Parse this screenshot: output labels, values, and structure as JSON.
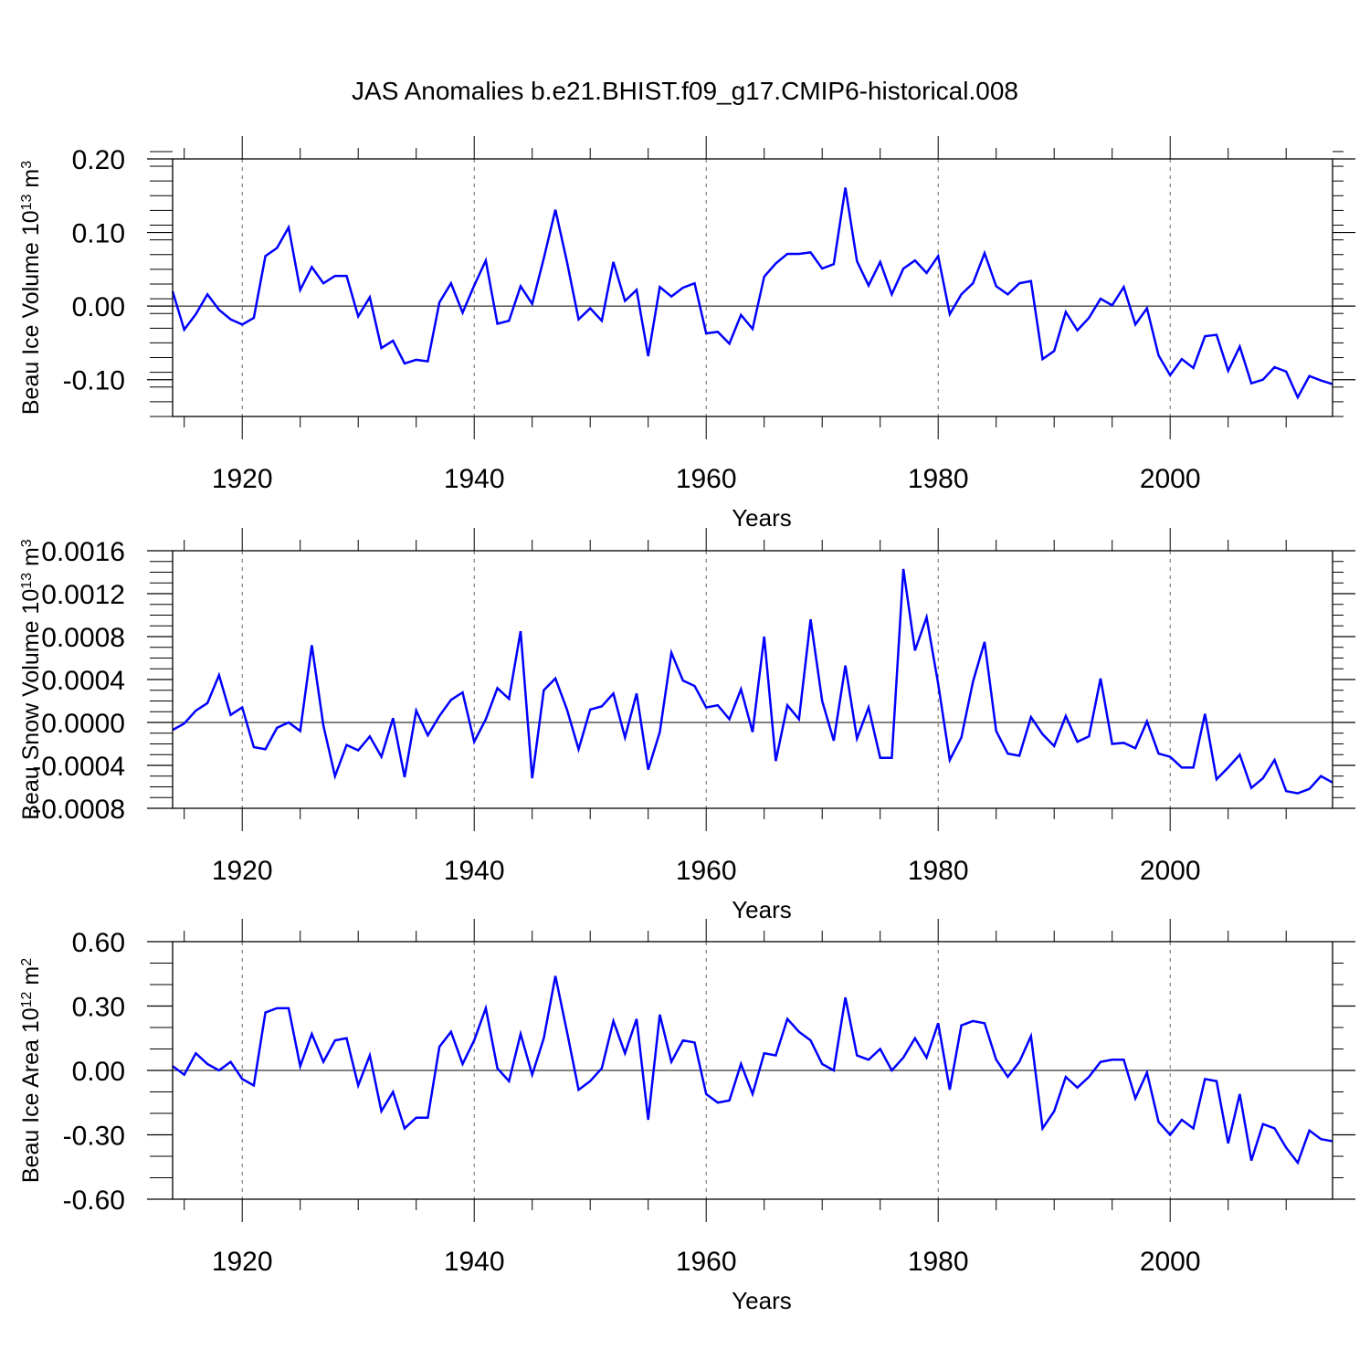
{
  "title": "JAS Anomalies b.e21.BHIST.f09_g17.CMIP6-historical.008",
  "colors": {
    "line": "#0000ff",
    "axis": "#000000",
    "grid": "#666666"
  },
  "chart_data": [
    {
      "type": "line",
      "title": "JAS Anomalies b.e21.BHIST.f09_g17.CMIP6-historical.008",
      "xlabel": "Years",
      "ylabel": "Beau Ice Volume 10",
      "ylabel_exp": "13",
      "ylabel_unit": " m",
      "ylabel_unit_exp": "3",
      "xlim": [
        1914,
        2014
      ],
      "ylim": [
        -0.15,
        0.2
      ],
      "xticks": [
        1920,
        1940,
        1960,
        1980,
        2000
      ],
      "yticks": [
        -0.1,
        0.0,
        0.1,
        0.2
      ],
      "ytick_labels": [
        "-0.10",
        "0.00",
        "0.10",
        "0.20"
      ],
      "ytick_minor_step": 0.02,
      "zero_line": 0,
      "x_start": 1914,
      "series": [
        {
          "name": "Beau Ice Volume",
          "values": [
            0.02,
            -0.032,
            -0.011,
            0.016,
            -0.005,
            -0.018,
            -0.025,
            -0.016,
            0.068,
            0.079,
            0.107,
            0.022,
            0.053,
            0.031,
            0.041,
            0.041,
            -0.014,
            0.012,
            -0.057,
            -0.047,
            -0.078,
            -0.073,
            -0.075,
            0.005,
            0.031,
            -0.009,
            0.028,
            0.062,
            -0.024,
            -0.02,
            0.027,
            0.003,
            0.065,
            0.131,
            0.06,
            -0.018,
            -0.003,
            -0.02,
            0.06,
            0.007,
            0.022,
            -0.068,
            0.026,
            0.013,
            0.025,
            0.031,
            -0.037,
            -0.035,
            -0.051,
            -0.012,
            -0.031,
            0.04,
            0.058,
            0.071,
            0.071,
            0.073,
            0.051,
            0.057,
            0.161,
            0.061,
            0.028,
            0.06,
            0.016,
            0.051,
            0.062,
            0.045,
            0.068,
            -0.011,
            0.016,
            0.031,
            0.072,
            0.027,
            0.016,
            0.031,
            0.034,
            -0.072,
            -0.061,
            -0.008,
            -0.033,
            -0.016,
            0.01,
            0.001,
            0.026,
            -0.025,
            -0.003,
            -0.067,
            -0.094,
            -0.072,
            -0.084,
            -0.041,
            -0.039,
            -0.088,
            -0.055,
            -0.105,
            -0.1,
            -0.083,
            -0.089,
            -0.124,
            -0.095,
            -0.101,
            -0.106
          ]
        }
      ]
    },
    {
      "type": "line",
      "xlabel": "Years",
      "ylabel": "Beau Snow Volume 10",
      "ylabel_exp": "13",
      "ylabel_unit": " m",
      "ylabel_unit_exp": "3",
      "xlim": [
        1914,
        2014
      ],
      "ylim": [
        -0.0008,
        0.0016
      ],
      "xticks": [
        1920,
        1940,
        1960,
        1980,
        2000
      ],
      "yticks": [
        -0.0008,
        -0.0004,
        0.0,
        0.0004,
        0.0008,
        0.0012,
        0.0016
      ],
      "ytick_labels": [
        "-0.0008",
        "-0.0004",
        "0.0000",
        "0.0004",
        "0.0008",
        "0.0012",
        "0.0016"
      ],
      "ytick_minor_step": 0.0001,
      "zero_line": 0,
      "x_start": 1914,
      "series": [
        {
          "name": "Beau Snow Volume",
          "values": [
            -7e-05,
            -1e-05,
            0.00011,
            0.00018,
            0.00044,
            7e-05,
            0.00014,
            -0.00023,
            -0.00025,
            -5e-05,
            0.0,
            -8e-05,
            0.00072,
            -3e-05,
            -0.0005,
            -0.00021,
            -0.00026,
            -0.00013,
            -0.00032,
            4e-05,
            -0.00051,
            0.00011,
            -0.00012,
            6e-05,
            0.00021,
            0.00028,
            -0.00018,
            3e-05,
            0.00032,
            0.00022,
            0.00085,
            -0.00052,
            0.0003,
            0.00041,
            0.00012,
            -0.00025,
            0.00012,
            0.00015,
            0.00027,
            -0.00014,
            0.00027,
            -0.00044,
            -9e-05,
            0.00065,
            0.00039,
            0.00034,
            0.00014,
            0.00016,
            3e-05,
            0.00031,
            -9e-05,
            0.0008,
            -0.00036,
            0.00016,
            3e-05,
            0.00096,
            0.0002,
            -0.00017,
            0.00053,
            -0.00015,
            0.00014,
            -0.00033,
            -0.00033,
            0.00143,
            0.00067,
            0.00098,
            0.00036,
            -0.00035,
            -0.00014,
            0.00038,
            0.00075,
            -8e-05,
            -0.00029,
            -0.00031,
            5e-05,
            -0.00011,
            -0.00022,
            6e-05,
            -0.00018,
            -0.00013,
            0.00041,
            -0.0002,
            -0.00019,
            -0.00024,
            1e-05,
            -0.00029,
            -0.00032,
            -0.00042,
            -0.00042,
            8e-05,
            -0.00053,
            -0.00042,
            -0.0003,
            -0.00061,
            -0.00052,
            -0.00035,
            -0.00064,
            -0.00066,
            -0.00062,
            -0.0005,
            -0.00056
          ]
        }
      ]
    },
    {
      "type": "line",
      "xlabel": "Years",
      "ylabel": "Beau Ice Area 10",
      "ylabel_exp": "12",
      "ylabel_unit": " m",
      "ylabel_unit_exp": "2",
      "xlim": [
        1914,
        2014
      ],
      "ylim": [
        -0.6,
        0.6
      ],
      "xticks": [
        1920,
        1940,
        1960,
        1980,
        2000
      ],
      "yticks": [
        -0.6,
        -0.3,
        0.0,
        0.3,
        0.6
      ],
      "ytick_labels": [
        "-0.60",
        "-0.30",
        "0.00",
        "0.30",
        "0.60"
      ],
      "ytick_minor_step": 0.1,
      "zero_line": 0,
      "x_start": 1914,
      "series": [
        {
          "name": "Beau Ice Area",
          "values": [
            0.02,
            -0.02,
            0.08,
            0.03,
            0.0,
            0.04,
            -0.04,
            -0.07,
            0.27,
            0.29,
            0.29,
            0.02,
            0.17,
            0.04,
            0.14,
            0.15,
            -0.07,
            0.07,
            -0.19,
            -0.1,
            -0.27,
            -0.22,
            -0.22,
            0.11,
            0.18,
            0.03,
            0.14,
            0.29,
            0.01,
            -0.05,
            0.17,
            -0.02,
            0.15,
            0.44,
            0.18,
            -0.09,
            -0.05,
            0.01,
            0.23,
            0.08,
            0.24,
            -0.23,
            0.26,
            0.04,
            0.14,
            0.13,
            -0.11,
            -0.15,
            -0.14,
            0.03,
            -0.11,
            0.08,
            0.07,
            0.24,
            0.18,
            0.14,
            0.03,
            0.0,
            0.34,
            0.07,
            0.05,
            0.1,
            0.0,
            0.06,
            0.15,
            0.06,
            0.22,
            -0.09,
            0.21,
            0.23,
            0.22,
            0.05,
            -0.03,
            0.04,
            0.16,
            -0.27,
            -0.19,
            -0.03,
            -0.08,
            -0.03,
            0.04,
            0.05,
            0.05,
            -0.13,
            -0.01,
            -0.24,
            -0.3,
            -0.23,
            -0.27,
            -0.04,
            -0.05,
            -0.34,
            -0.11,
            -0.42,
            -0.25,
            -0.27,
            -0.36,
            -0.43,
            -0.28,
            -0.32,
            -0.33
          ]
        }
      ]
    }
  ]
}
